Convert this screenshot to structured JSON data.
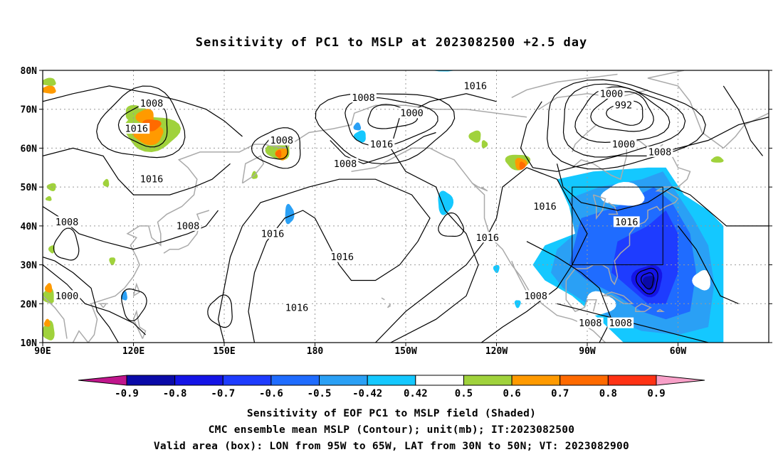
{
  "title": "Sensitivity of PC1 to MSLP at 2023082500 +2.5 day",
  "map": {
    "lat_labels": [
      "80N",
      "70N",
      "60N",
      "50N",
      "40N",
      "30N",
      "20N",
      "10N"
    ],
    "lon_labels": [
      "90E",
      "120E",
      "150E",
      "180",
      "150W",
      "120W",
      "90W",
      "60W"
    ],
    "contour_labels": [
      {
        "text": "1008",
        "lon": 126,
        "lat": 71.5
      },
      {
        "text": "1016",
        "lon": 121,
        "lat": 65
      },
      {
        "text": "1016",
        "lon": 126,
        "lat": 52
      },
      {
        "text": "1008",
        "lon": 98,
        "lat": 41
      },
      {
        "text": "1008",
        "lon": 138,
        "lat": 40
      },
      {
        "text": "1000",
        "lon": 98,
        "lat": 22
      },
      {
        "text": "1008",
        "lon": 169,
        "lat": 62
      },
      {
        "text": "1016",
        "lon": 166,
        "lat": 38
      },
      {
        "text": "1016",
        "lon": 174,
        "lat": 19
      },
      {
        "text": "1016",
        "lon": -171,
        "lat": 32
      },
      {
        "text": "1008",
        "lon": -164,
        "lat": 73
      },
      {
        "text": "1000",
        "lon": -148,
        "lat": 69
      },
      {
        "text": "1016",
        "lon": -158,
        "lat": 61
      },
      {
        "text": "1008",
        "lon": -170,
        "lat": 56
      },
      {
        "text": "1016",
        "lon": -127,
        "lat": 76
      },
      {
        "text": "1016",
        "lon": -123,
        "lat": 37
      },
      {
        "text": "1000",
        "lon": -82,
        "lat": 74
      },
      {
        "text": "992",
        "lon": -78,
        "lat": 71
      },
      {
        "text": "1000",
        "lon": -78,
        "lat": 61
      },
      {
        "text": "1008",
        "lon": -66,
        "lat": 59
      },
      {
        "text": "1016",
        "lon": -104,
        "lat": 45
      },
      {
        "text": "1016",
        "lon": -77,
        "lat": 41
      },
      {
        "text": "1008",
        "lon": -107,
        "lat": 22
      },
      {
        "text": "1008",
        "lon": -89,
        "lat": 15
      },
      {
        "text": "1008",
        "lon": -79,
        "lat": 15
      }
    ]
  },
  "colorbar": {
    "labels": [
      "-0.9",
      "-0.8",
      "-0.7",
      "-0.6",
      "-0.5",
      "-0.42",
      "0.42",
      "0.5",
      "0.6",
      "0.7",
      "0.8",
      "0.9"
    ],
    "colors": [
      "#0a0aa8",
      "#1414e6",
      "#1e3cff",
      "#1f6cff",
      "#2aa0f5",
      "#14c8ff",
      "#ffffff",
      "#a0d23c",
      "#ff9a00",
      "#ff6a00",
      "#ff3214",
      "#ff0000"
    ],
    "low_end_color": "#c0168c",
    "high_end_color": "#f8a0c8"
  },
  "valid_box": {
    "lon_min": -95,
    "lon_max": -65,
    "lat_min": 30,
    "lat_max": 50
  },
  "captions": {
    "line1": "Sensitivity of EOF PC1 to MSLP field (Shaded)",
    "line2": "CMC ensemble mean MSLP (Contour); unit(mb); IT:2023082500",
    "line3": "Valid area (box): LON from 95W to 65W, LAT from 30N to 50N; VT: 2023082900"
  }
}
